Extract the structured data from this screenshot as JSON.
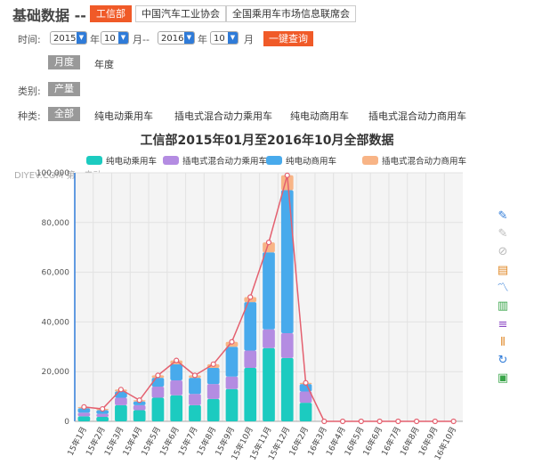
{
  "header": {
    "title": "基础数据 --",
    "sources": [
      "工信部",
      "中国汽车工业协会",
      "全国乘用车市场信息联席会"
    ]
  },
  "time_filter": {
    "label": "时间:",
    "start_year": "2015",
    "year_unit": "年",
    "start_month": "10",
    "month_unit": "月",
    "range_sep": "--",
    "end_year": "2016",
    "end_month": "10",
    "query_label": "一键查询"
  },
  "period_tabs": [
    "月度",
    "年度"
  ],
  "category": {
    "label": "类别:",
    "value": "产量"
  },
  "kind": {
    "label": "种类:",
    "options": [
      "全部",
      "纯电动乘用车",
      "插电式混合动力乘用车",
      "纯电动商用车",
      "插电式混合动力商用车"
    ]
  },
  "watermark": "DIYEV.COM 第一电动",
  "colors": {
    "accent": "#f05a28",
    "s1": "#1ccbc0",
    "s2": "#b48ce2",
    "s3": "#48aaec",
    "s4": "#f8b486",
    "total_line": "#e4606f",
    "axis": "#2f7bd8"
  },
  "toolbar_icons": [
    "pen-icon",
    "eraser-icon",
    "clear-icon",
    "data-view-icon",
    "line-chart-icon",
    "bar-chart-icon",
    "stack-icon",
    "tiled-icon",
    "refresh-icon",
    "save-icon"
  ],
  "chart_data": {
    "type": "bar",
    "stacked": true,
    "title": "工信部2015年01月至2016年10月全部数据",
    "categories": [
      "15年1月",
      "15年2月",
      "15年3月",
      "15年4月",
      "15年5月",
      "15年6月",
      "15年7月",
      "15年8月",
      "15年9月",
      "15年10月",
      "15年11月",
      "15年12月",
      "16年2月",
      "16年3月",
      "16年4月",
      "16年5月",
      "16年6月",
      "16年7月",
      "16年8月",
      "16年9月",
      "16年10月"
    ],
    "series": [
      {
        "name": "纯电动乘用车",
        "values": [
          2000,
          1800,
          6500,
          4500,
          9500,
          10500,
          6500,
          9000,
          13000,
          21500,
          29500,
          25500,
          7500,
          0,
          0,
          0,
          0,
          0,
          0,
          0,
          0
        ]
      },
      {
        "name": "插电式混合动力乘用车",
        "values": [
          1500,
          1200,
          3000,
          2000,
          4500,
          6000,
          4500,
          6000,
          5000,
          7000,
          7500,
          10000,
          4500,
          0,
          0,
          0,
          0,
          0,
          0,
          0,
          0
        ]
      },
      {
        "name": "纯电动商用车",
        "values": [
          1800,
          1500,
          2500,
          1500,
          3500,
          6500,
          6500,
          6500,
          12000,
          19500,
          31000,
          57500,
          3000,
          0,
          0,
          0,
          0,
          0,
          0,
          0,
          0
        ]
      },
      {
        "name": "插电式混合动力商用车",
        "values": [
          500,
          500,
          800,
          500,
          1000,
          1500,
          1000,
          1500,
          2000,
          2000,
          4000,
          6000,
          500,
          0,
          0,
          0,
          0,
          0,
          0,
          0,
          0
        ]
      }
    ],
    "ylim": [
      0,
      100000
    ],
    "yticks": [
      "0",
      "20,000",
      "40,000",
      "60,000",
      "80,000",
      "100,000"
    ],
    "grid": true,
    "legend_position": "top"
  }
}
